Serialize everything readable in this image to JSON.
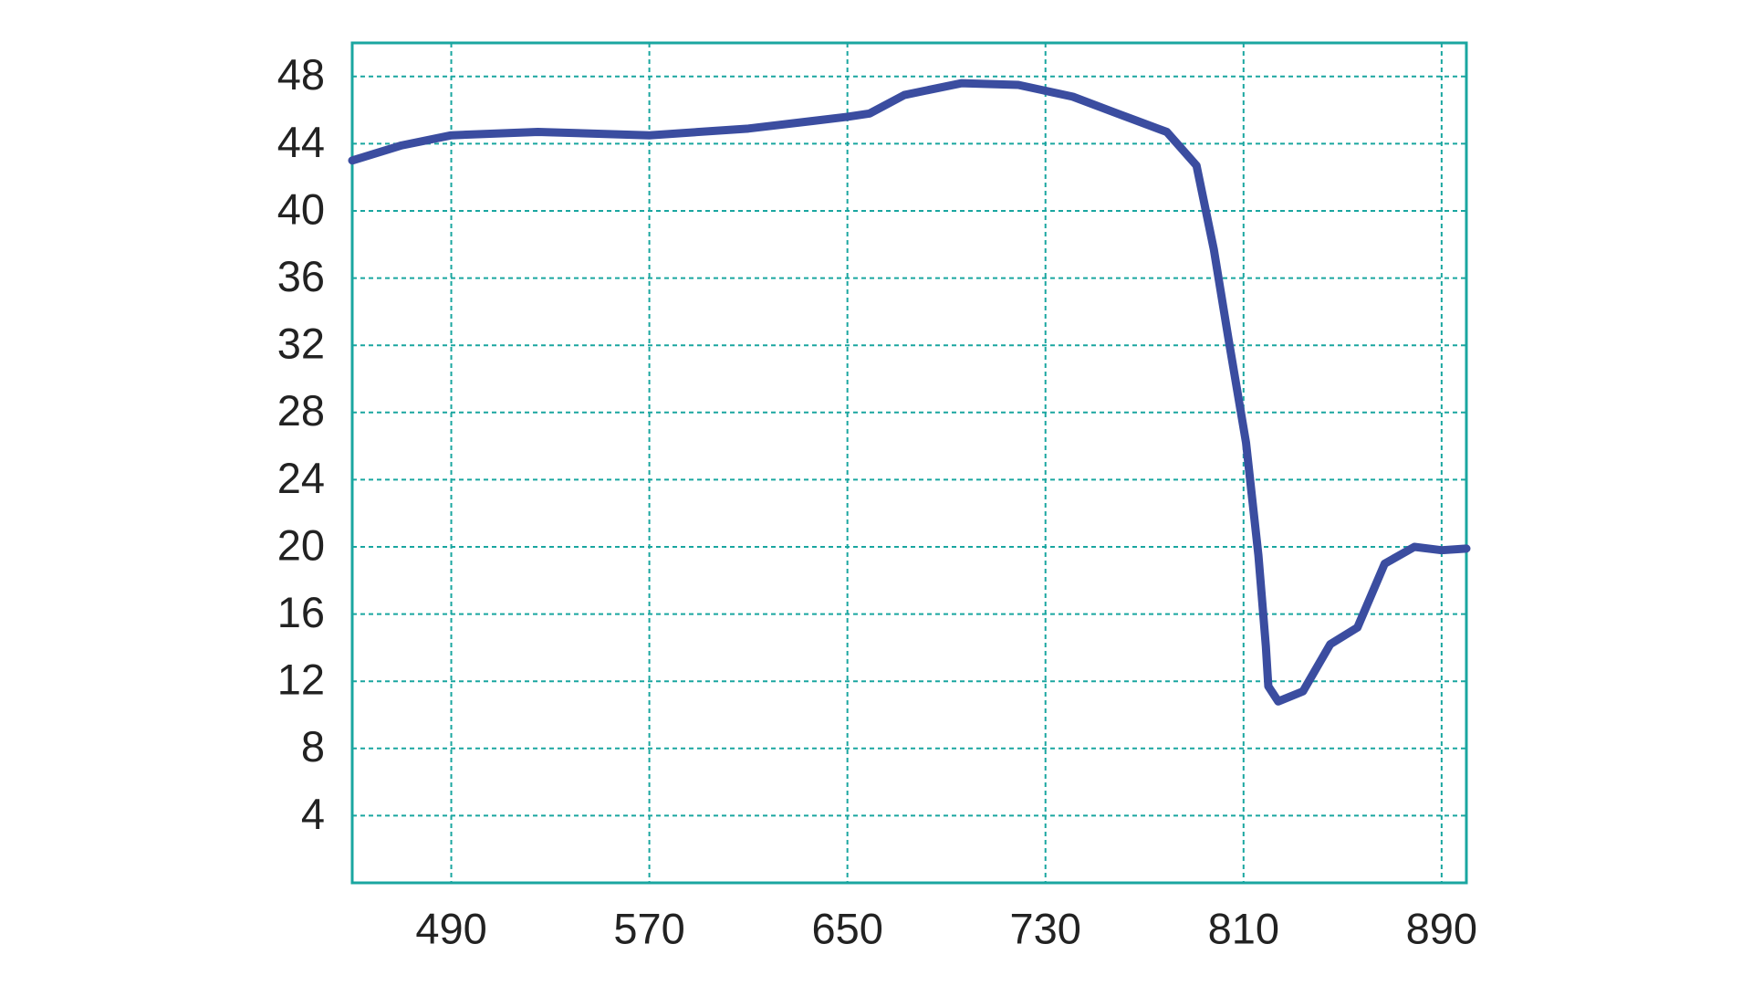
{
  "chart_data": {
    "type": "line",
    "x": [
      450,
      470,
      490,
      525,
      570,
      610,
      650,
      659,
      673,
      696,
      719,
      741,
      759,
      779,
      791,
      798,
      804,
      811,
      816,
      819,
      820,
      824,
      834,
      845,
      856,
      867,
      879,
      890,
      900
    ],
    "series": [
      {
        "color": "#3b4da0",
        "values": [
          43.0,
          43.9,
          44.5,
          44.7,
          44.5,
          44.9,
          45.6,
          45.8,
          46.9,
          47.6,
          47.5,
          46.8,
          45.8,
          44.7,
          42.7,
          37.7,
          32.3,
          26.2,
          19.5,
          14.1,
          11.7,
          10.8,
          11.4,
          14.2,
          15.2,
          19.0,
          20.0,
          19.8,
          19.9
        ]
      }
    ],
    "xlim": [
      450,
      900
    ],
    "xticks": [
      490,
      570,
      650,
      730,
      810,
      890
    ],
    "ylim": [
      0,
      50
    ],
    "yticks": [
      4,
      8,
      12,
      16,
      20,
      24,
      28,
      32,
      36,
      40,
      44,
      48
    ],
    "grid": true,
    "grid_color": "#1aa6a0"
  }
}
